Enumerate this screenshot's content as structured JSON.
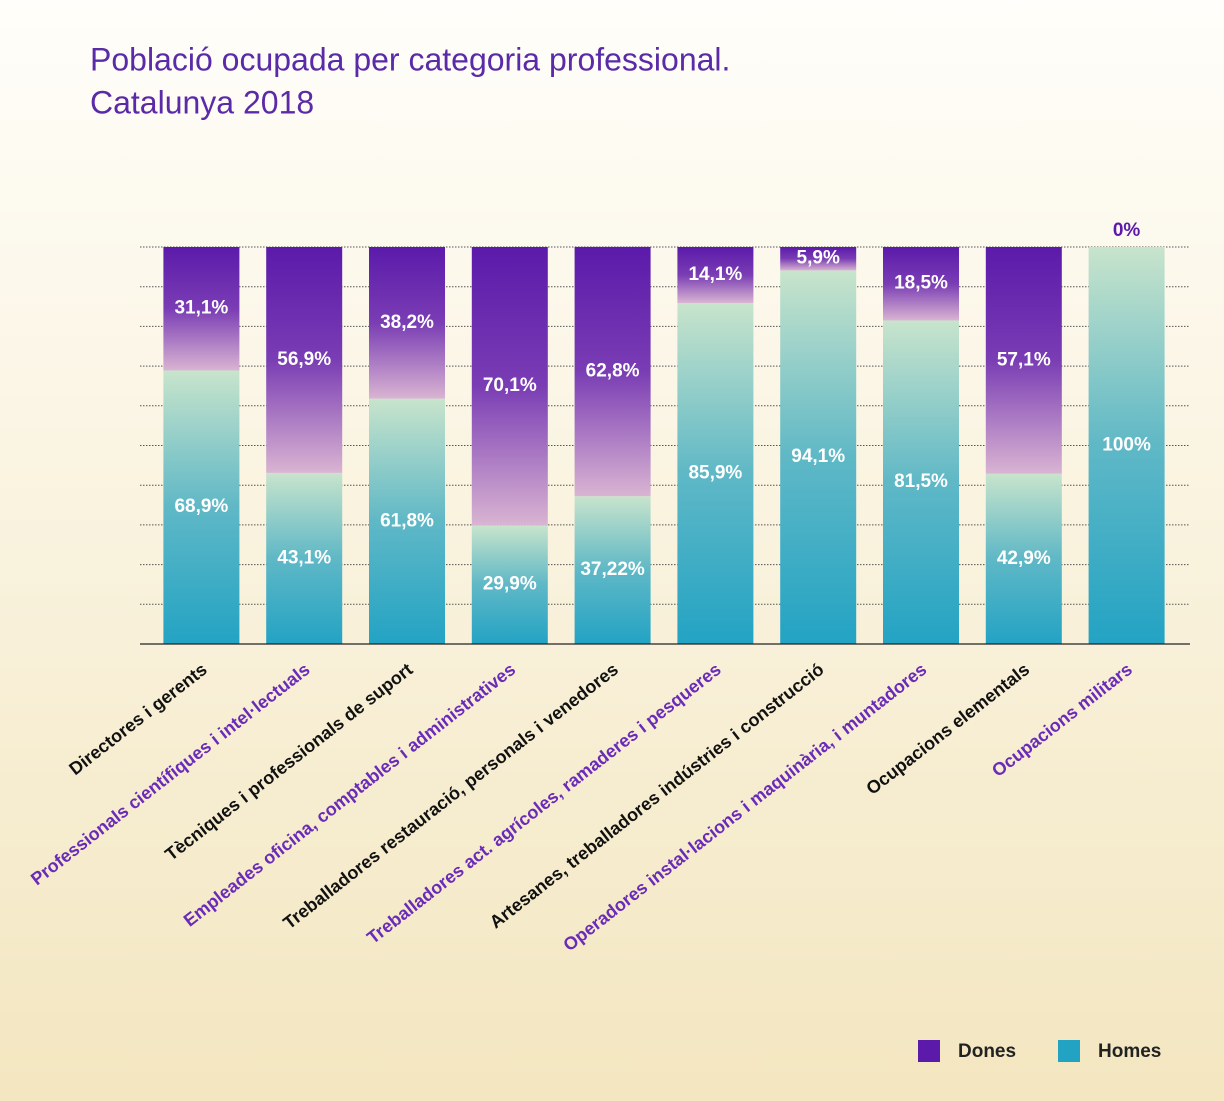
{
  "chart_data": {
    "type": "stacked_bar",
    "title": [
      "Població ocupada per categoria professional.",
      "Catalunya 2018"
    ],
    "categories": [
      "Directores i gerents",
      "Professionals científiques i intel·lectuals",
      "Tècniques i professionals de suport",
      "Empleades oficina, comptables i administratives",
      "Treballadores restauració, personals i venedores",
      "Treballadores act. agrícoles, ramaderes i pesqueres",
      "Artesanes, treballadores indústries i construcció",
      "Operadores instal·lacions i maquinària, i muntadores",
      "Ocupacions elementals",
      "Ocupacions militars"
    ],
    "series": [
      {
        "name": "Homes",
        "color": "#23a3c4",
        "values": [
          68.9,
          43.1,
          61.8,
          29.9,
          37.22,
          85.9,
          94.1,
          81.5,
          42.9,
          100
        ],
        "value_labels": [
          "68,9%",
          "43,1%",
          "61,8%",
          "29,9%",
          "37,22%",
          "85,9%",
          "94,1%",
          "81,5%",
          "42,9%",
          "100%"
        ]
      },
      {
        "name": "Dones",
        "color": "#5b1aaa",
        "values": [
          31.1,
          56.9,
          38.2,
          70.1,
          62.8,
          14.1,
          5.9,
          18.5,
          57.1,
          0
        ],
        "value_labels": [
          "31,1%",
          "56,9%",
          "38,2%",
          "70,1%",
          "62,8%",
          "14,1%",
          "5,9%",
          "18,5%",
          "57,1%",
          "0%"
        ]
      }
    ],
    "ylim": [
      0,
      100
    ],
    "yticks": [
      0,
      10,
      20,
      30,
      40,
      50,
      60,
      70,
      80,
      90,
      100
    ],
    "grid": true,
    "legend": "lower right"
  }
}
